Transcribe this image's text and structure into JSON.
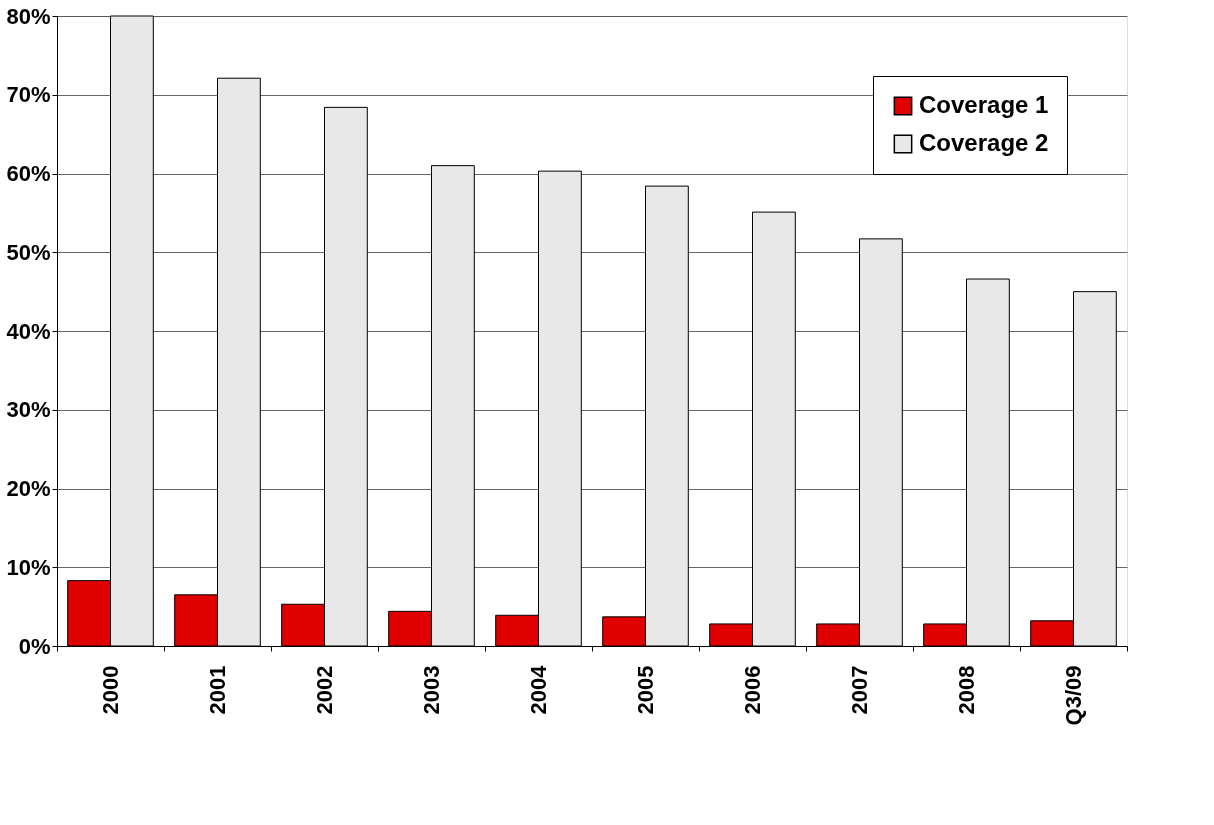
{
  "chart_data": {
    "type": "bar",
    "categories": [
      "2000",
      "2001",
      "2002",
      "2003",
      "2004",
      "2005",
      "2006",
      "2007",
      "2008",
      "Q3/09"
    ],
    "series": [
      {
        "name": "Coverage 1",
        "color": "#e00000",
        "values": [
          8.3,
          6.5,
          5.3,
          4.4,
          3.9,
          3.7,
          2.8,
          2.8,
          2.8,
          3.2
        ]
      },
      {
        "name": "Coverage 2",
        "color": "#e8e8e8",
        "values": [
          80,
          72.1,
          68.4,
          61,
          60.3,
          58.4,
          55.1,
          51.7,
          46.6,
          45
        ]
      }
    ],
    "ylim": [
      0,
      80
    ],
    "yticks": [
      {
        "value": 0,
        "label": "0%"
      },
      {
        "value": 10,
        "label": "10%"
      },
      {
        "value": 20,
        "label": "20%"
      },
      {
        "value": 30,
        "label": "30%"
      },
      {
        "value": 40,
        "label": "40%"
      },
      {
        "value": 50,
        "label": "50%"
      },
      {
        "value": 60,
        "label": "60%"
      },
      {
        "value": 70,
        "label": "70%"
      },
      {
        "value": 80,
        "label": "80%"
      }
    ],
    "grid": "y",
    "legend": "top right"
  }
}
